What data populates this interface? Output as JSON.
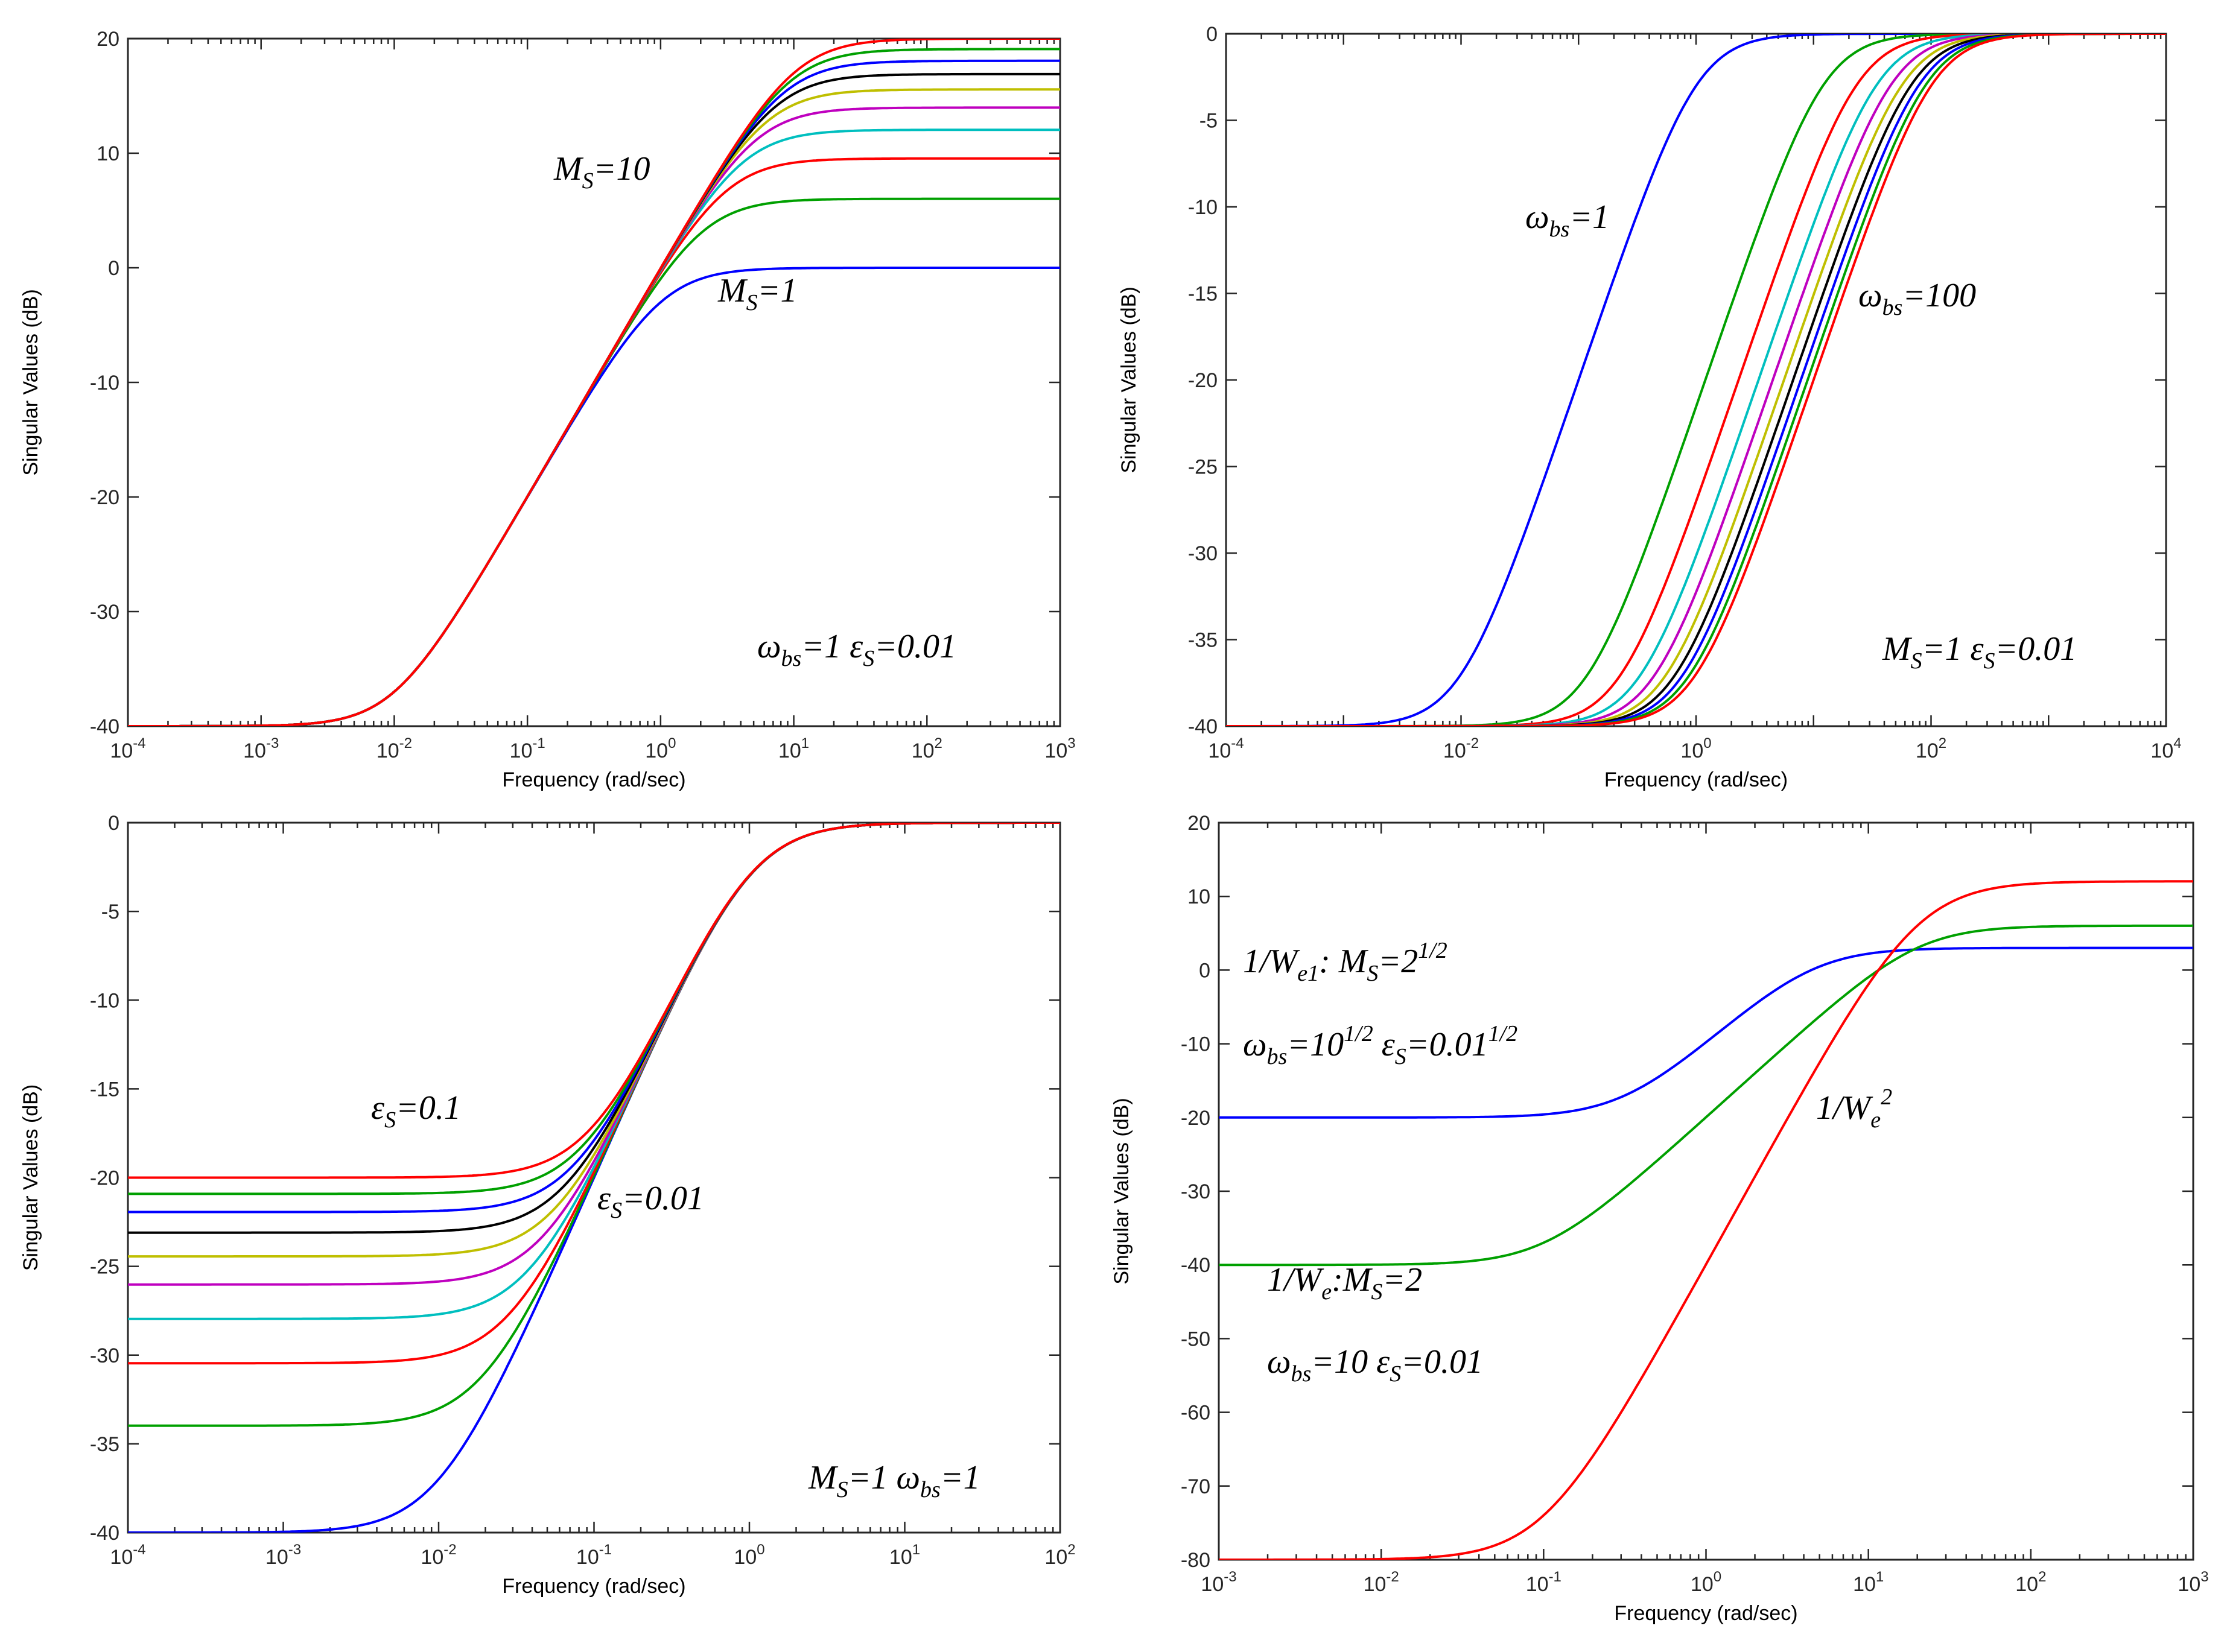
{
  "chart_data": [
    {
      "type": "line",
      "xscale": "log",
      "xlabel": "Frequency (rad/sec)",
      "ylabel": "Singular Values (dB)",
      "xlim": [
        0.0001,
        1000
      ],
      "ylim": [
        -40,
        20
      ],
      "x_tick_exponents": [
        -4,
        -3,
        -2,
        -1,
        0,
        1,
        2,
        3
      ],
      "y_ticks": [
        "20",
        "10",
        "0",
        "-10",
        "-20",
        "-30",
        "-40"
      ],
      "grid": false,
      "params": {
        "wbs": 1,
        "eps": 0.01
      },
      "series": [
        {
          "color": "#0000ff",
          "Ms": 1
        },
        {
          "color": "#00a000",
          "Ms": 2
        },
        {
          "color": "#ff0000",
          "Ms": 3
        },
        {
          "color": "#00bfbf",
          "Ms": 4
        },
        {
          "color": "#bf00bf",
          "Ms": 5
        },
        {
          "color": "#bfbf00",
          "Ms": 6
        },
        {
          "color": "#000000",
          "Ms": 7
        },
        {
          "color": "#0000ff",
          "Ms": 8
        },
        {
          "color": "#00a000",
          "Ms": 9
        },
        {
          "color": "#ff0000",
          "Ms": 10
        }
      ],
      "annotations": [
        {
          "parts": [
            {
              "t": "M"
            },
            {
              "t": "S",
              "sub": true
            },
            {
              "t": "=10"
            }
          ]
        },
        {
          "parts": [
            {
              "t": "M"
            },
            {
              "t": "S",
              "sub": true
            },
            {
              "t": "=1"
            }
          ]
        },
        {
          "parts": [
            {
              "t": "ω"
            },
            {
              "t": "bs",
              "sub": true
            },
            {
              "t": "=1 ε"
            },
            {
              "t": "S",
              "sub": true
            },
            {
              "t": "=0.01"
            }
          ]
        }
      ]
    },
    {
      "type": "line",
      "xscale": "log",
      "xlabel": "Frequency (rad/sec)",
      "ylabel": "Singular Values (dB)",
      "xlim": [
        0.0001,
        10000
      ],
      "ylim": [
        -40,
        0
      ],
      "x_tick_exponents": [
        -4,
        -2,
        0,
        2,
        4
      ],
      "y_ticks": [
        "0",
        "-5",
        "-10",
        "-15",
        "-20",
        "-25",
        "-30",
        "-35",
        "-40"
      ],
      "grid": false,
      "params": {
        "Ms": 1,
        "eps": 0.01
      },
      "series": [
        {
          "color": "#0000ff",
          "wbs": 1
        },
        {
          "color": "#00a000",
          "wbs": 12
        },
        {
          "color": "#ff0000",
          "wbs": 23
        },
        {
          "color": "#00bfbf",
          "wbs": 34
        },
        {
          "color": "#bf00bf",
          "wbs": 45
        },
        {
          "color": "#bfbf00",
          "wbs": 56
        },
        {
          "color": "#000000",
          "wbs": 67
        },
        {
          "color": "#0000ff",
          "wbs": 78
        },
        {
          "color": "#00a000",
          "wbs": 89
        },
        {
          "color": "#ff0000",
          "wbs": 100
        }
      ],
      "annotations": [
        {
          "parts": [
            {
              "t": "ω"
            },
            {
              "t": "bs",
              "sub": true
            },
            {
              "t": "=1"
            }
          ]
        },
        {
          "parts": [
            {
              "t": "ω"
            },
            {
              "t": "bs",
              "sub": true
            },
            {
              "t": "=100"
            }
          ]
        },
        {
          "parts": [
            {
              "t": "M"
            },
            {
              "t": "S",
              "sub": true
            },
            {
              "t": "=1 ε"
            },
            {
              "t": "S",
              "sub": true
            },
            {
              "t": "=0.01"
            }
          ]
        }
      ]
    },
    {
      "type": "line",
      "xscale": "log",
      "xlabel": "Frequency (rad/sec)",
      "ylabel": "Singular Values (dB)",
      "xlim": [
        0.0001,
        100
      ],
      "ylim": [
        -40,
        0
      ],
      "x_tick_exponents": [
        -4,
        -3,
        -2,
        -1,
        0,
        1,
        2
      ],
      "y_ticks": [
        "0",
        "-5",
        "-10",
        "-15",
        "-20",
        "-25",
        "-30",
        "-35",
        "-40"
      ],
      "grid": false,
      "params": {
        "Ms": 1,
        "wbs": 1
      },
      "series": [
        {
          "color": "#0000ff",
          "eps": 0.01
        },
        {
          "color": "#00a000",
          "eps": 0.02
        },
        {
          "color": "#ff0000",
          "eps": 0.03
        },
        {
          "color": "#00bfbf",
          "eps": 0.04
        },
        {
          "color": "#bf00bf",
          "eps": 0.05
        },
        {
          "color": "#bfbf00",
          "eps": 0.06
        },
        {
          "color": "#000000",
          "eps": 0.07
        },
        {
          "color": "#0000ff",
          "eps": 0.08
        },
        {
          "color": "#00a000",
          "eps": 0.09
        },
        {
          "color": "#ff0000",
          "eps": 0.1
        }
      ],
      "annotations": [
        {
          "parts": [
            {
              "t": "ε"
            },
            {
              "t": "S",
              "sub": true
            },
            {
              "t": "=0.1"
            }
          ]
        },
        {
          "parts": [
            {
              "t": "ε"
            },
            {
              "t": "S",
              "sub": true
            },
            {
              "t": "=0.01"
            }
          ]
        },
        {
          "parts": [
            {
              "t": "M"
            },
            {
              "t": "S",
              "sub": true
            },
            {
              "t": "=1 ω"
            },
            {
              "t": "bs",
              "sub": true
            },
            {
              "t": "=1"
            }
          ]
        }
      ]
    },
    {
      "type": "line",
      "xscale": "log",
      "xlabel": "Frequency (rad/sec)",
      "ylabel": "Singular Values (dB)",
      "xlim": [
        0.001,
        1000
      ],
      "ylim": [
        -80,
        20
      ],
      "x_tick_exponents": [
        -3,
        -2,
        -1,
        0,
        1,
        2,
        3
      ],
      "y_ticks": [
        "20",
        "10",
        "0",
        "-10",
        "-20",
        "-30",
        "-40",
        "-50",
        "-60",
        "-70",
        "-80"
      ],
      "grid": false,
      "series": [
        {
          "color": "#0000ff",
          "Ms": 1.4142,
          "wbs": 3.1623,
          "eps": 0.1
        },
        {
          "color": "#00a000",
          "Ms": 2,
          "wbs": 10,
          "eps": 0.01
        },
        {
          "color": "#ff0000",
          "kind": "product",
          "Ms": 2,
          "wbs": 10,
          "eps": 0.01
        }
      ],
      "annotations": [
        {
          "parts": [
            {
              "t": "1/W"
            },
            {
              "t": "e1",
              "sub": true
            },
            {
              "t": ": M"
            },
            {
              "t": "S",
              "sub": true
            },
            {
              "t": "=2"
            },
            {
              "t": "1/2",
              "sup": true
            }
          ]
        },
        {
          "parts": [
            {
              "t": "ω"
            },
            {
              "t": "bs",
              "sub": true
            },
            {
              "t": "=10"
            },
            {
              "t": "1/2",
              "sup": true
            },
            {
              "t": " ε"
            },
            {
              "t": "S",
              "sub": true
            },
            {
              "t": "=0.01"
            },
            {
              "t": "1/2",
              "sup": true
            }
          ]
        },
        {
          "parts": [
            {
              "t": "1/W"
            },
            {
              "t": "e",
              "sub": true
            },
            {
              "t": "2",
              "sup": true
            }
          ]
        },
        {
          "parts": [
            {
              "t": "1/W"
            },
            {
              "t": "e",
              "sub": true
            },
            {
              "t": ":M"
            },
            {
              "t": "S",
              "sub": true
            },
            {
              "t": "=2"
            }
          ]
        },
        {
          "parts": [
            {
              "t": "ω"
            },
            {
              "t": "bs",
              "sub": true
            },
            {
              "t": "=10 ε"
            },
            {
              "t": "S",
              "sub": true
            },
            {
              "t": "=0.01"
            }
          ]
        }
      ]
    }
  ]
}
